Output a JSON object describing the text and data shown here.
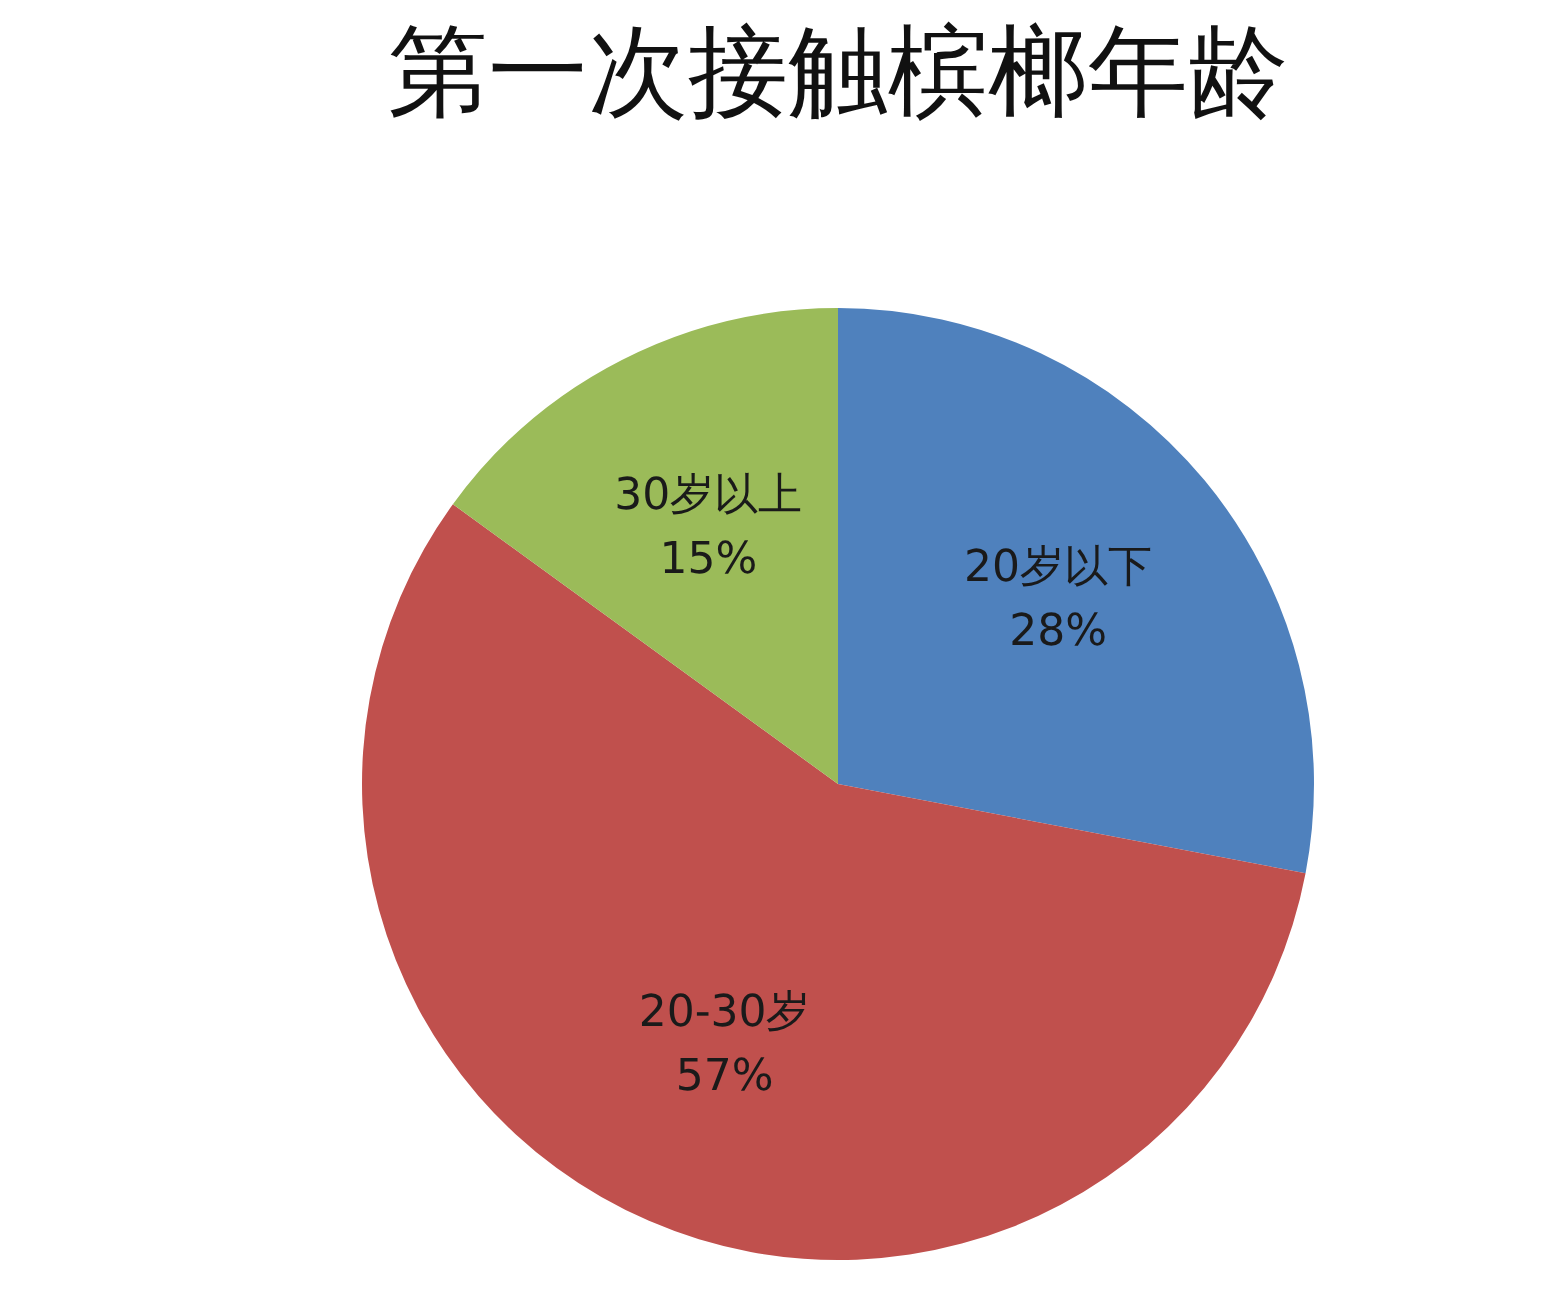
{
  "chart_data": {
    "type": "pie",
    "title": "第一次接触槟榔年龄",
    "categories": [
      "20岁以下",
      "20-30岁",
      "30岁以上"
    ],
    "values": [
      28,
      57,
      15
    ],
    "colors": [
      "#4f81bd",
      "#c0504d",
      "#9bbb59"
    ],
    "value_labels": [
      "28%",
      "57%",
      "15%"
    ],
    "legend": false
  }
}
